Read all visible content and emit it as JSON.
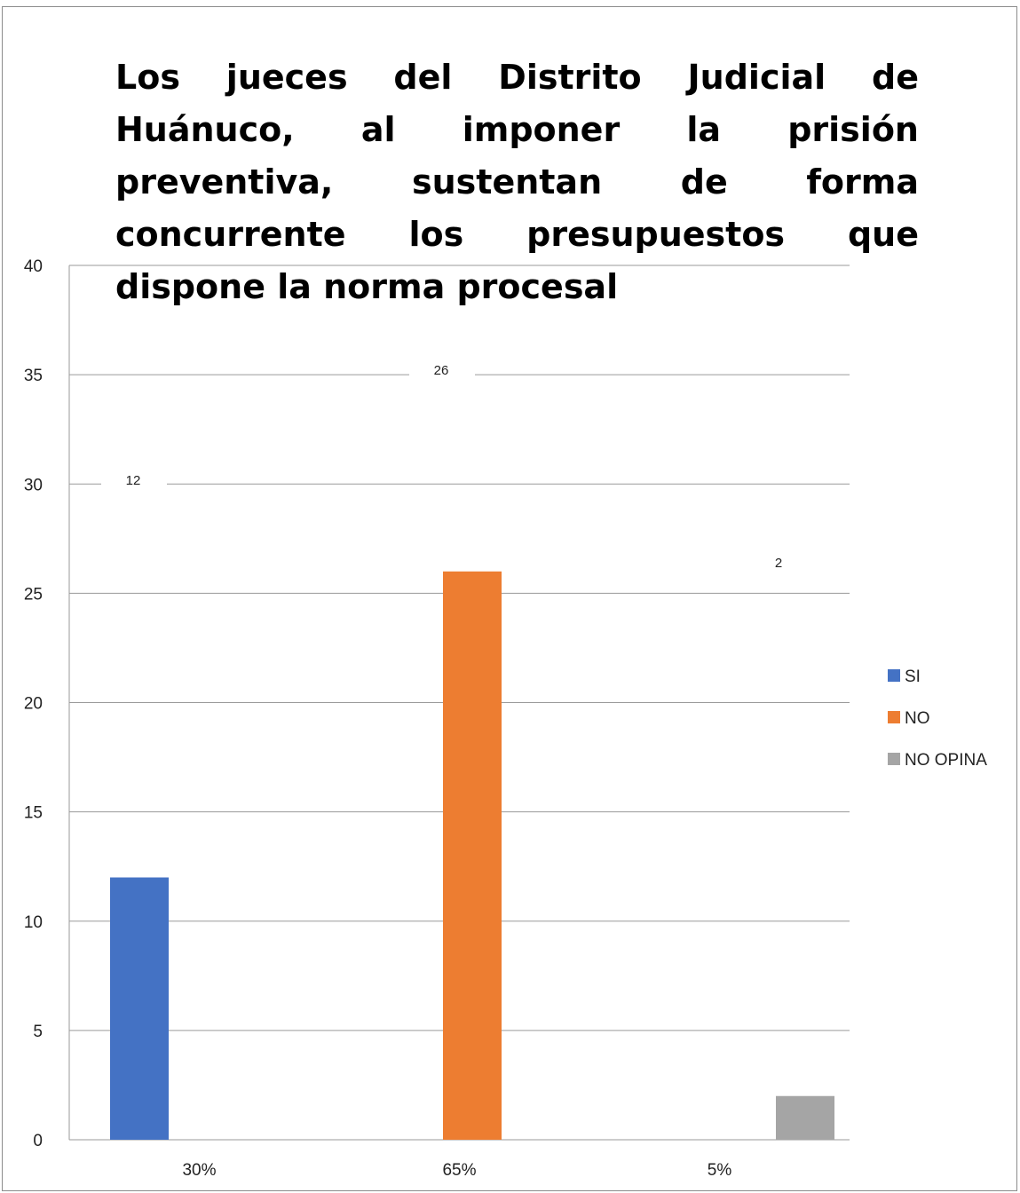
{
  "chart_data": {
    "type": "bar",
    "title": "Los jueces del Distrito Judicial de Huánuco, al imponer la prisión preventiva, sustentan de forma concurrente los presupuestos que dispone la norma procesal",
    "categories": [
      "30%",
      "65%",
      "5%"
    ],
    "series": [
      {
        "name": "SI",
        "color": "#4472C4",
        "values": [
          12,
          0,
          0
        ]
      },
      {
        "name": "NO",
        "color": "#ED7D31",
        "values": [
          0,
          26,
          0
        ]
      },
      {
        "name": "NO OPINA",
        "color": "#A5A5A5",
        "values": [
          0,
          0,
          2
        ]
      }
    ],
    "data_labels": [
      "12",
      "26",
      "2"
    ],
    "yticks": [
      0,
      5,
      10,
      15,
      20,
      25,
      30,
      35,
      40
    ],
    "ylim": [
      0,
      40
    ],
    "xlabel": "",
    "ylabel": "",
    "grid": true,
    "legend_position": "right"
  }
}
